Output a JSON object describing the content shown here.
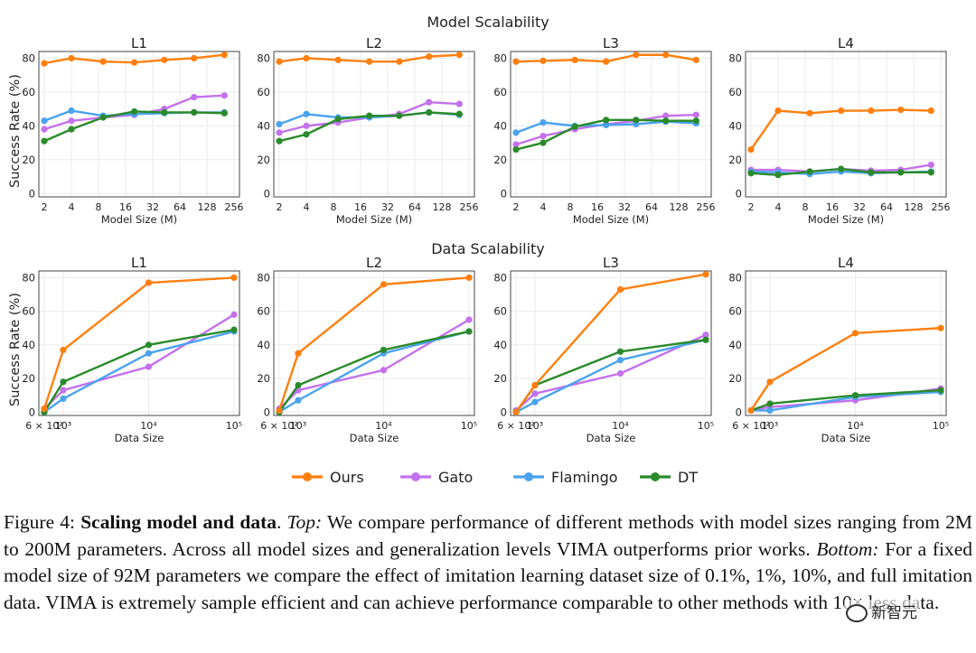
{
  "colors": {
    "Ours": "#ff7f0e",
    "Gato": "#c471ed",
    "Flamingo": "#4aa3ee",
    "DT": "#2a8a2a"
  },
  "section_titles": {
    "top": "Model Scalability",
    "bottom": "Data Scalability"
  },
  "legend": [
    "Ours",
    "Gato",
    "Flamingo",
    "DT"
  ],
  "chart_data": [
    {
      "type": "line",
      "section": "Model Scalability",
      "title": "L1",
      "xlabel": "Model Size (M)",
      "ylabel": "Success Rate (%)",
      "xscale": "log2",
      "x": [
        2,
        4,
        9,
        20,
        43,
        92,
        200
      ],
      "xticks": [
        2,
        4,
        8,
        16,
        32,
        64,
        128,
        256
      ],
      "xticklabels": [
        "2",
        "4",
        "8",
        "16",
        "32",
        "64",
        "128",
        "256"
      ],
      "ylim": [
        -2,
        84
      ],
      "yticks": [
        0,
        20,
        40,
        60,
        80
      ],
      "grid": true,
      "series": [
        {
          "name": "Ours",
          "values": [
            77,
            80,
            78,
            77.5,
            79,
            80,
            82
          ]
        },
        {
          "name": "Gato",
          "values": [
            38,
            43,
            45,
            46.5,
            50,
            57,
            58
          ]
        },
        {
          "name": "Flamingo",
          "values": [
            43,
            49,
            46,
            47,
            47.5,
            48,
            48
          ]
        },
        {
          "name": "DT",
          "values": [
            31,
            38,
            45,
            48.5,
            48,
            48,
            47.5
          ]
        }
      ]
    },
    {
      "type": "line",
      "section": "Model Scalability",
      "title": "L2",
      "xlabel": "Model Size (M)",
      "ylabel": "",
      "xscale": "log2",
      "x": [
        2,
        4,
        9,
        20,
        43,
        92,
        200
      ],
      "xticks": [
        2,
        4,
        8,
        16,
        32,
        64,
        128,
        256
      ],
      "xticklabels": [
        "2",
        "4",
        "8",
        "16",
        "32",
        "64",
        "128",
        "256"
      ],
      "ylim": [
        -2,
        84
      ],
      "yticks": [
        0,
        20,
        40,
        60,
        80
      ],
      "grid": true,
      "series": [
        {
          "name": "Ours",
          "values": [
            78,
            80,
            79,
            78,
            78,
            81,
            82
          ]
        },
        {
          "name": "Gato",
          "values": [
            36,
            40,
            42,
            45,
            47,
            54,
            53
          ]
        },
        {
          "name": "Flamingo",
          "values": [
            41,
            47,
            45,
            45,
            46,
            48,
            46.5
          ]
        },
        {
          "name": "DT",
          "values": [
            31,
            35,
            44,
            46,
            46,
            48,
            47
          ]
        }
      ]
    },
    {
      "type": "line",
      "section": "Model Scalability",
      "title": "L3",
      "xlabel": "Model Size (M)",
      "ylabel": "",
      "xscale": "log2",
      "x": [
        2,
        4,
        9,
        20,
        43,
        92,
        200
      ],
      "xticks": [
        2,
        4,
        8,
        16,
        32,
        64,
        128,
        256
      ],
      "xticklabels": [
        "2",
        "4",
        "8",
        "16",
        "32",
        "64",
        "128",
        "256"
      ],
      "ylim": [
        -2,
        84
      ],
      "yticks": [
        0,
        20,
        40,
        60,
        80
      ],
      "grid": true,
      "series": [
        {
          "name": "Ours",
          "values": [
            78,
            78.5,
            79,
            78,
            82,
            82,
            79
          ]
        },
        {
          "name": "Gato",
          "values": [
            29,
            34,
            38,
            41,
            43,
            46,
            46.5
          ]
        },
        {
          "name": "Flamingo",
          "values": [
            36,
            42,
            40,
            40.5,
            41,
            42.5,
            41.5
          ]
        },
        {
          "name": "DT",
          "values": [
            26,
            30,
            39.5,
            43.5,
            43.5,
            43,
            43
          ]
        }
      ]
    },
    {
      "type": "line",
      "section": "Model Scalability",
      "title": "L4",
      "xlabel": "Model Size (M)",
      "ylabel": "",
      "xscale": "log2",
      "x": [
        2,
        4,
        9,
        20,
        43,
        92,
        200
      ],
      "xticks": [
        2,
        4,
        8,
        16,
        32,
        64,
        128,
        256
      ],
      "xticklabels": [
        "2",
        "4",
        "8",
        "16",
        "32",
        "64",
        "128",
        "256"
      ],
      "ylim": [
        -2,
        84
      ],
      "yticks": [
        0,
        20,
        40,
        60,
        80
      ],
      "grid": true,
      "series": [
        {
          "name": "Ours",
          "values": [
            26,
            49,
            47.5,
            49,
            49,
            49.5,
            49
          ]
        },
        {
          "name": "Gato",
          "values": [
            14,
            14,
            13,
            14.5,
            13.5,
            14,
            17
          ]
        },
        {
          "name": "Flamingo",
          "values": [
            13,
            12.5,
            11.5,
            13,
            12,
            12.5,
            13
          ]
        },
        {
          "name": "DT",
          "values": [
            12,
            11,
            13,
            14.5,
            12.5,
            12.5,
            12.5
          ]
        }
      ]
    },
    {
      "type": "line",
      "section": "Data Scalability",
      "title": "L1",
      "xlabel": "Data Size",
      "ylabel": "Success Rate (%)",
      "xscale": "log10",
      "x": [
        600,
        1000,
        10000,
        100000
      ],
      "xticks": [
        600,
        1000,
        10000,
        100000
      ],
      "xticklabels": [
        "6 × 10²",
        "10³",
        "10⁴",
        "10⁵"
      ],
      "ylim": [
        -2,
        84
      ],
      "yticks": [
        0,
        20,
        40,
        60,
        80
      ],
      "grid": true,
      "series": [
        {
          "name": "Ours",
          "values": [
            2,
            37,
            77,
            80
          ]
        },
        {
          "name": "Gato",
          "values": [
            2,
            13,
            27,
            58
          ]
        },
        {
          "name": "Flamingo",
          "values": [
            0,
            8,
            35,
            48
          ]
        },
        {
          "name": "DT",
          "values": [
            0,
            18,
            40,
            49
          ]
        }
      ]
    },
    {
      "type": "line",
      "section": "Data Scalability",
      "title": "L2",
      "xlabel": "Data Size",
      "ylabel": "",
      "xscale": "log10",
      "x": [
        600,
        1000,
        10000,
        100000
      ],
      "xticks": [
        600,
        1000,
        10000,
        100000
      ],
      "xticklabels": [
        "6 × 10²",
        "10³",
        "10⁴",
        "10⁵"
      ],
      "ylim": [
        -2,
        84
      ],
      "yticks": [
        0,
        20,
        40,
        60,
        80
      ],
      "grid": true,
      "series": [
        {
          "name": "Ours",
          "values": [
            1,
            35,
            76,
            80
          ]
        },
        {
          "name": "Gato",
          "values": [
            2,
            13,
            25,
            55
          ]
        },
        {
          "name": "Flamingo",
          "values": [
            0,
            7,
            35,
            48
          ]
        },
        {
          "name": "DT",
          "values": [
            0,
            16,
            37,
            48
          ]
        }
      ]
    },
    {
      "type": "line",
      "section": "Data Scalability",
      "title": "L3",
      "xlabel": "Data Size",
      "ylabel": "",
      "xscale": "log10",
      "x": [
        600,
        1000,
        10000,
        100000
      ],
      "xticks": [
        600,
        1000,
        10000,
        100000
      ],
      "xticklabels": [
        "6 × 10²",
        "10³",
        "10⁴",
        "10⁵"
      ],
      "ylim": [
        -2,
        84
      ],
      "yticks": [
        0,
        20,
        40,
        60,
        80
      ],
      "grid": true,
      "series": [
        {
          "name": "Ours",
          "values": [
            0,
            16,
            73,
            82
          ]
        },
        {
          "name": "Gato",
          "values": [
            1,
            11,
            23,
            46
          ]
        },
        {
          "name": "Flamingo",
          "values": [
            0,
            6,
            31,
            43
          ]
        },
        {
          "name": "DT",
          "values": [
            0,
            16,
            36,
            43
          ]
        }
      ]
    },
    {
      "type": "line",
      "section": "Data Scalability",
      "title": "L4",
      "xlabel": "Data Size",
      "ylabel": "",
      "xscale": "log10",
      "x": [
        600,
        1000,
        10000,
        100000
      ],
      "xticks": [
        600,
        1000,
        10000,
        100000
      ],
      "xticklabels": [
        "6 × 10²",
        "10³",
        "10⁴",
        "10⁵"
      ],
      "ylim": [
        -2,
        84
      ],
      "yticks": [
        0,
        20,
        40,
        60,
        80
      ],
      "grid": true,
      "series": [
        {
          "name": "Ours",
          "values": [
            1,
            18,
            47,
            50
          ]
        },
        {
          "name": "Gato",
          "values": [
            1,
            3,
            7,
            14
          ]
        },
        {
          "name": "Flamingo",
          "values": [
            1,
            1,
            9,
            12
          ]
        },
        {
          "name": "DT",
          "values": [
            1,
            5,
            10,
            13
          ]
        }
      ]
    }
  ],
  "caption": {
    "label": "Figure 4: ",
    "bold": "Scaling model and data",
    "after_bold": ". ",
    "top_label": "Top:",
    "top_text": " We compare performance of different methods with model sizes ranging from 2M to 200M parameters. Across all model sizes and generalization levels VIMA outperforms prior works. ",
    "bottom_label": "Bottom:",
    "bottom_text": " For a fixed model size of 92M parameters we compare the effect of imitation learning dataset size of 0.1%, 1%, 10%, and full imitation data. VIMA is extremely sample efficient and can achieve performance comparable to other methods with 10× less data."
  },
  "watermark": "新智元"
}
